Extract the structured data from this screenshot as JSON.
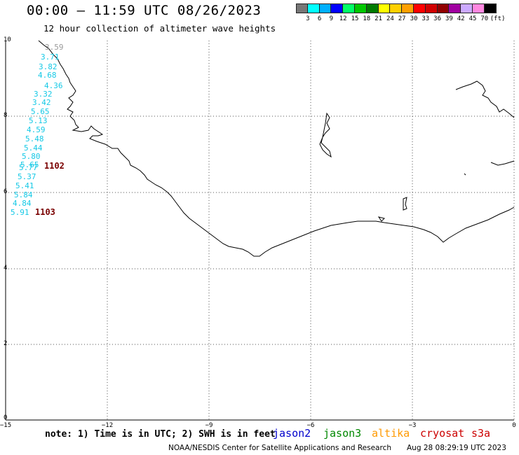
{
  "header": {
    "title": "00:00 – 11:59 UTC 08/26/2023",
    "subtitle": "12 hour collection of altimeter wave heights"
  },
  "legend": {
    "unit": "(ft)",
    "colors": [
      "#777777",
      "#00ffff",
      "#00b0ff",
      "#0000ff",
      "#00ff66",
      "#00c800",
      "#007a00",
      "#ffff00",
      "#ffd000",
      "#ffa000",
      "#ff0000",
      "#d00000",
      "#900000",
      "#a000a0",
      "#ccaaff",
      "#ff88e0",
      "#000000"
    ],
    "labels": [
      "3",
      "6",
      "9",
      "12",
      "15",
      "18",
      "21",
      "24",
      "27",
      "30",
      "33",
      "36",
      "39",
      "42",
      "45",
      "70"
    ]
  },
  "axes": {
    "y_ticks": [
      "10",
      "8",
      "6",
      "4",
      "2",
      "0"
    ],
    "x_ticks": [
      "−15",
      "−12",
      "−9",
      "−6",
      "−3",
      "0"
    ]
  },
  "wave_heights": [
    {
      "value": "3.59",
      "gray": true
    },
    {
      "value": "3.71"
    },
    {
      "value": "3.82"
    },
    {
      "value": "4.68"
    },
    {
      "value": "4.36"
    },
    {
      "value": "3.32"
    },
    {
      "value": "3.42"
    },
    {
      "value": "5.65"
    },
    {
      "value": "5.13"
    },
    {
      "value": "4.59"
    },
    {
      "value": "5.48"
    },
    {
      "value": "5.44"
    },
    {
      "value": "5.80"
    },
    {
      "value": "5.65"
    },
    {
      "value": "5.77"
    },
    {
      "value": "5.37"
    },
    {
      "value": "5.41"
    },
    {
      "value": "5.84"
    },
    {
      "value": "4.84"
    },
    {
      "value": "5.91"
    }
  ],
  "cycle_labels": [
    "1102",
    "1103"
  ],
  "footer": {
    "note": "note: 1) Time is in UTC; 2) SWH is in feet",
    "satellites": [
      {
        "name": "jason2",
        "color": "#0000cc"
      },
      {
        "name": "jason3",
        "color": "#008800"
      },
      {
        "name": "altika",
        "color": "#ff9900"
      },
      {
        "name": "cryosat",
        "color": "#cc0000"
      },
      {
        "name": "s3a",
        "color": "#cc0000"
      }
    ],
    "credit": "NOAA/NESDIS Center for Satellite Applications and Research",
    "timestamp": "Aug 28 08:29:19 UTC 2023"
  }
}
